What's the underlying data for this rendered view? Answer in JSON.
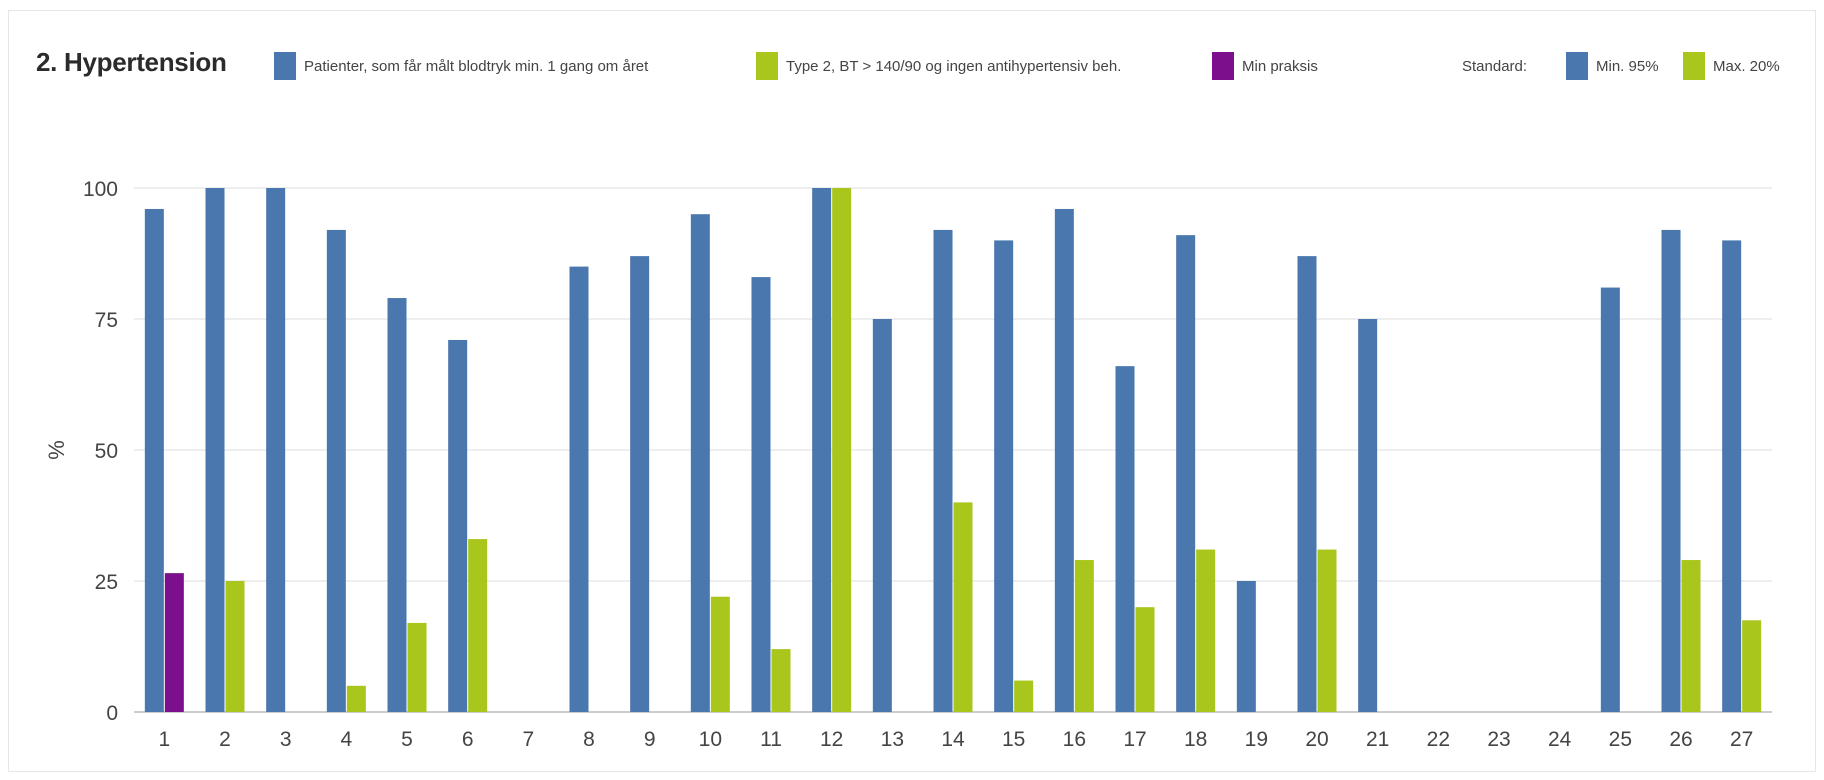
{
  "chart_data": {
    "type": "bar",
    "title": "2. Hypertension",
    "ylabel": "%",
    "xlabel": "",
    "ylim": [
      0,
      100
    ],
    "yticks": [
      0,
      25,
      50,
      75,
      100
    ],
    "grid": true,
    "legend_position": "top",
    "categories": [
      "1",
      "2",
      "3",
      "4",
      "5",
      "6",
      "7",
      "8",
      "9",
      "10",
      "11",
      "12",
      "13",
      "14",
      "15",
      "16",
      "17",
      "18",
      "19",
      "20",
      "21",
      "22",
      "23",
      "24",
      "25",
      "26",
      "27"
    ],
    "series": [
      {
        "name": "Patienter, som får målt blodtryk min. 1 gang om året",
        "color": "#4a77ad",
        "values": [
          96,
          100,
          100,
          92,
          79,
          71,
          null,
          85,
          87,
          95,
          83,
          100,
          75,
          92,
          90,
          96,
          66,
          91,
          25,
          87,
          75,
          null,
          null,
          null,
          81,
          92,
          90
        ]
      },
      {
        "name": "Type 2, BT > 140/90 og ingen antihypertensiv beh.",
        "color": "#a8c61c",
        "values": [
          26.5,
          25,
          null,
          5,
          17,
          33,
          null,
          null,
          null,
          22,
          12,
          100,
          null,
          40,
          6,
          29,
          20,
          31,
          null,
          31,
          null,
          null,
          null,
          null,
          null,
          29,
          17.5
        ],
        "highlight": {
          "category_index": 0,
          "name": "Min praksis",
          "color": "#7b0f8c"
        }
      }
    ],
    "standard": {
      "label": "Standard:",
      "items": [
        {
          "name": "Min. 95%",
          "color": "#4a77ad"
        },
        {
          "name": "Max. 20%",
          "color": "#a8c61c"
        }
      ]
    }
  },
  "legend": {
    "series1": "Patienter, som får målt blodtryk min. 1 gang om året",
    "series2": "Type 2, BT > 140/90 og ingen antihypertensiv beh.",
    "mine": "Min praksis"
  },
  "colors": {
    "blue": "#4a77ad",
    "green": "#a8c61c",
    "purple": "#7b0f8c",
    "grid": "#dddddd"
  }
}
